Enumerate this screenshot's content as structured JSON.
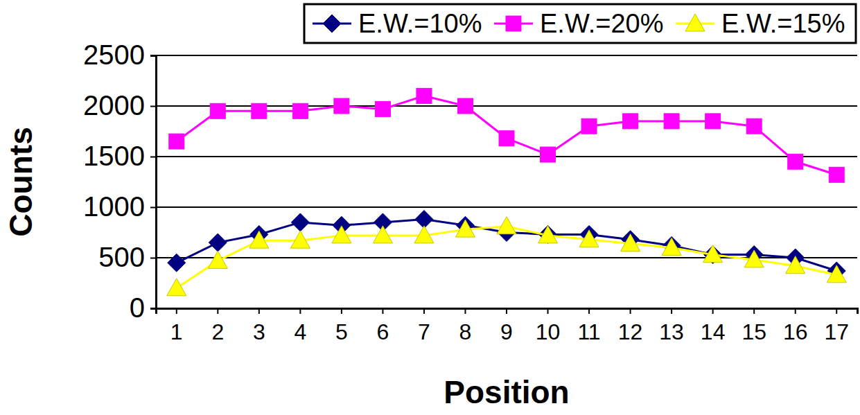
{
  "chart_data": {
    "type": "line",
    "x_label": "Position",
    "y_label": "Counts",
    "categories": [
      "1",
      "2",
      "3",
      "4",
      "5",
      "6",
      "7",
      "8",
      "9",
      "10",
      "11",
      "12",
      "13",
      "14",
      "15",
      "16",
      "17"
    ],
    "series": [
      {
        "name": "E.W.=10%",
        "color": "#000080",
        "marker": "diamond",
        "values": [
          450,
          650,
          730,
          850,
          820,
          850,
          880,
          820,
          750,
          730,
          730,
          680,
          620,
          530,
          530,
          500,
          370
        ]
      },
      {
        "name": "E.W.=20%",
        "color": "#ff00ff",
        "marker": "square",
        "values": [
          1650,
          1950,
          1950,
          1950,
          2000,
          1970,
          2100,
          2000,
          1680,
          1520,
          1800,
          1850,
          1850,
          1850,
          1800,
          1450,
          1320
        ]
      },
      {
        "name": "E.W.=15%",
        "color": "#ffff00",
        "marker": "triangle",
        "values": [
          200,
          470,
          670,
          670,
          720,
          720,
          720,
          780,
          810,
          720,
          680,
          640,
          600,
          530,
          480,
          420,
          330
        ]
      }
    ],
    "ylim": [
      0,
      2500
    ],
    "yticks": [
      0,
      500,
      1000,
      1500,
      2000,
      2500
    ],
    "grid": true,
    "legend": "top-right"
  }
}
